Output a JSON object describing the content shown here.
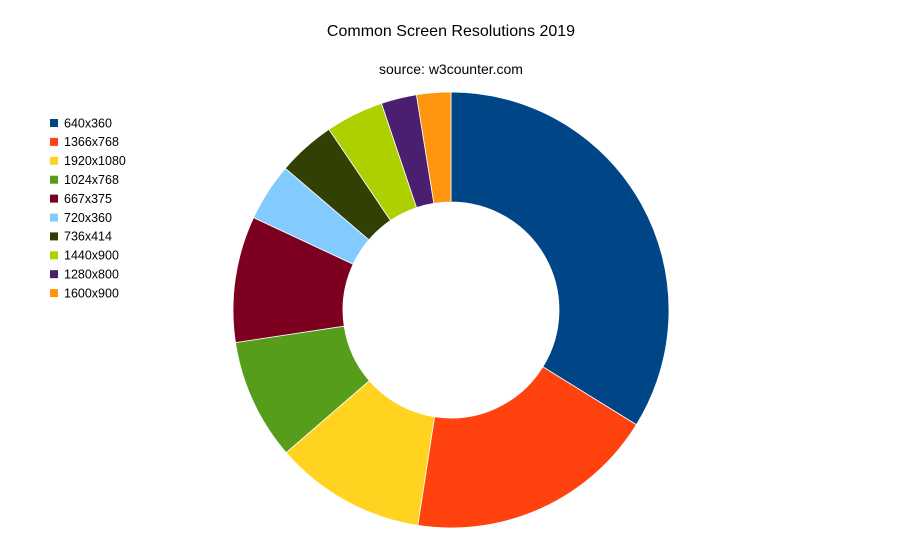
{
  "chart_data": {
    "type": "pie",
    "title": "Common Screen Resolutions 2019",
    "subtitle": "source: w3counter.com",
    "donut": true,
    "legend_position": "left",
    "categories": [
      "640x360",
      "1366x768",
      "1920x1080",
      "1024x768",
      "667x375",
      "720x360",
      "736x414",
      "1440x900",
      "1280x800",
      "1600x900"
    ],
    "values": [
      34.7,
      19.1,
      11.5,
      9.2,
      9.6,
      4.4,
      4.4,
      4.4,
      2.7,
      2.6
    ],
    "colors": [
      "#004586",
      "#FF420E",
      "#FFD320",
      "#579D1C",
      "#7E0021",
      "#83CAFF",
      "#314004",
      "#AECF00",
      "#4B1F6F",
      "#FF950E"
    ]
  }
}
